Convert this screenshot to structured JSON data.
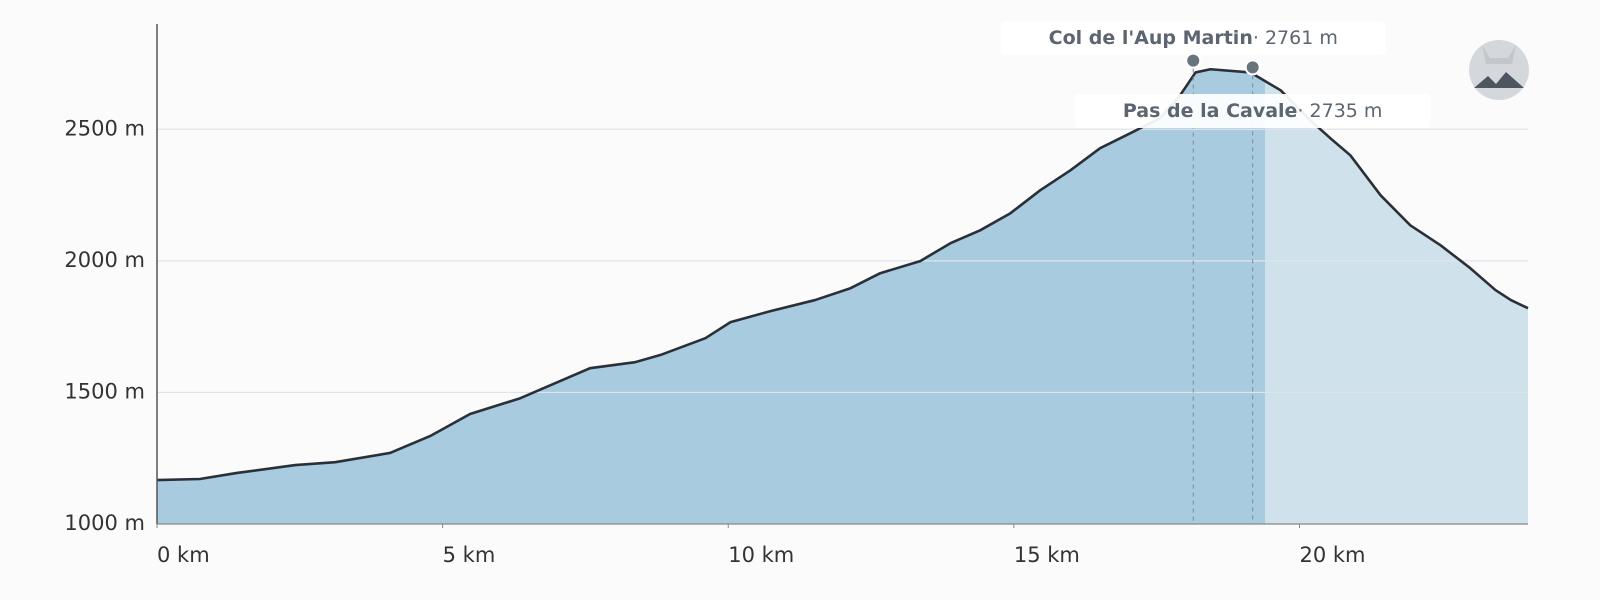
{
  "chart_data": {
    "type": "area",
    "x": [
      0,
      0.75,
      1.4,
      2.42,
      3.12,
      4.08,
      4.78,
      5.48,
      6.36,
      6.97,
      7.58,
      8.37,
      8.81,
      9.6,
      10.04,
      10.74,
      11.52,
      12.14,
      12.66,
      13.36,
      13.89,
      14.41,
      14.94,
      15.46,
      15.99,
      16.51,
      17.04,
      17.56,
      17.91,
      18.18,
      18.44,
      19.14,
      19.67,
      20.19,
      20.54,
      20.89,
      21.42,
      21.94,
      22.47,
      22.99,
      23.43,
      23.7,
      24.0
    ],
    "values": [
      1167,
      1171,
      1194,
      1224,
      1235,
      1270,
      1334,
      1418,
      1478,
      1535,
      1592,
      1615,
      1642,
      1706,
      1767,
      1809,
      1851,
      1896,
      1953,
      1999,
      2067,
      2116,
      2181,
      2268,
      2344,
      2428,
      2485,
      2542,
      2629,
      2716,
      2728,
      2716,
      2648,
      2534,
      2466,
      2401,
      2249,
      2135,
      2059,
      1972,
      1889,
      1851,
      1820
    ],
    "xlim": [
      0,
      24
    ],
    "ylim": [
      1000,
      2900
    ],
    "xticks": [
      {
        "value": 0,
        "label": "0 km"
      },
      {
        "value": 5,
        "label": "5 km"
      },
      {
        "value": 10,
        "label": "10 km"
      },
      {
        "value": 15,
        "label": "15 km"
      },
      {
        "value": 20,
        "label": "20 km"
      }
    ],
    "yticks": [
      {
        "value": 1000,
        "label": "1000 m"
      },
      {
        "value": 1500,
        "label": "1500 m"
      },
      {
        "value": 2000,
        "label": "2000 m"
      },
      {
        "value": 2500,
        "label": "2500 m"
      }
    ],
    "grid": true,
    "color": "#a9cbe0",
    "line_color": "#2b3038",
    "annotations": [
      {
        "name": "Col de l'Aup Martin",
        "x": 18.14,
        "elevation": 2761,
        "elevation_label": "· 2761 m"
      },
      {
        "name": "Pas de la Cavale",
        "x": 19.18,
        "elevation": 2735,
        "elevation_label": "· 2735 m"
      }
    ]
  }
}
